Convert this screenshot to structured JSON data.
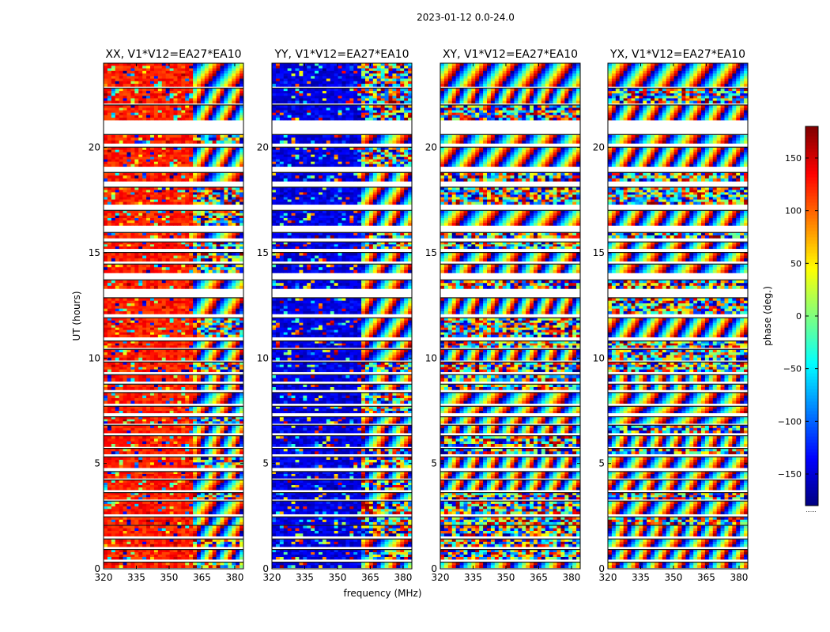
{
  "figure": {
    "suptitle": "2023-01-12 0.0-24.0"
  },
  "colorbar": {
    "label": "phase (deg.)",
    "range": [
      -180,
      180
    ],
    "ticks": [
      "150",
      "100",
      "50",
      "0",
      "−50",
      "−100",
      "−150"
    ],
    "tick_values": [
      150,
      100,
      50,
      0,
      -50,
      -100,
      -150
    ],
    "colormap": [
      "#00007f",
      "#0000ff",
      "#007fff",
      "#00ffff",
      "#7fff7f",
      "#ffff00",
      "#ff7f00",
      "#ff0000",
      "#7f0000"
    ],
    "bottom_note": "......"
  },
  "chart_data": {
    "type": "heatmap",
    "title": "2023-01-12 0.0-24.0",
    "xlabel": "frequency (MHz)",
    "ylabel": "UT (hours)",
    "xlim": [
      320,
      384
    ],
    "ylim": [
      0,
      24
    ],
    "x_ticks": [
      "320",
      "335",
      "350",
      "365",
      "380"
    ],
    "x_tick_values": [
      320,
      335,
      350,
      365,
      380
    ],
    "y_ticks": [
      "0",
      "5",
      "10",
      "15",
      "20"
    ],
    "y_tick_values": [
      0,
      5,
      10,
      15,
      20
    ],
    "value_label": "phase (deg.)",
    "value_range": [
      -180,
      180
    ],
    "panels": [
      {
        "title": "XX, V1*V12=EA27*EA10",
        "pol": "XX",
        "base_phase": 125
      },
      {
        "title": "YY, V1*V12=EA27*EA10",
        "pol": "YY",
        "base_phase": -145
      },
      {
        "title": "XY, V1*V12=EA27*EA10",
        "pol": "XY",
        "base_phase": null
      },
      {
        "title": "YX, V1*V12=EA27*EA10",
        "pol": "YX",
        "base_phase": null
      }
    ],
    "data_segments_ut": [
      [
        0.05,
        0.3
      ],
      [
        0.45,
        0.9
      ],
      [
        1.05,
        1.4
      ],
      [
        1.55,
        2.05
      ],
      [
        2.1,
        2.45
      ],
      [
        2.6,
        3.2
      ],
      [
        3.3,
        3.6
      ],
      [
        3.75,
        4.2
      ],
      [
        4.3,
        4.6
      ],
      [
        4.8,
        5.3
      ],
      [
        5.45,
        5.7
      ],
      [
        5.8,
        6.3
      ],
      [
        6.45,
        6.8
      ],
      [
        6.9,
        7.2
      ],
      [
        7.4,
        7.7
      ],
      [
        7.85,
        8.35
      ],
      [
        8.5,
        8.75
      ],
      [
        8.9,
        9.2
      ],
      [
        9.35,
        9.8
      ],
      [
        9.9,
        10.4
      ],
      [
        10.5,
        10.8
      ],
      [
        11.0,
        11.9
      ],
      [
        12.1,
        12.85
      ],
      [
        13.3,
        13.7
      ],
      [
        14.05,
        14.45
      ],
      [
        14.6,
        15.0
      ],
      [
        15.2,
        15.5
      ],
      [
        15.7,
        15.95
      ],
      [
        16.3,
        17.0
      ],
      [
        17.3,
        18.1
      ],
      [
        18.4,
        18.8
      ],
      [
        19.1,
        20.0
      ],
      [
        20.2,
        20.6
      ],
      [
        21.3,
        22.0
      ],
      [
        22.1,
        22.8
      ],
      [
        22.9,
        24.0
      ]
    ]
  }
}
